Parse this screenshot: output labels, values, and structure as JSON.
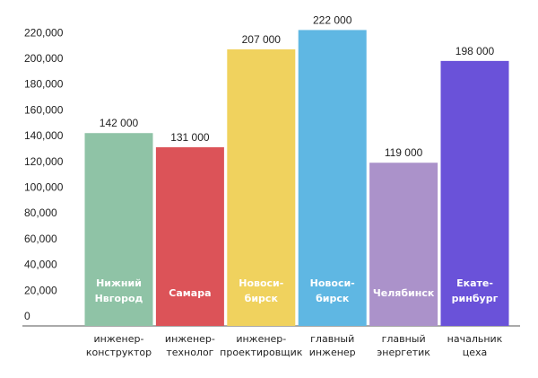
{
  "chart_data": {
    "type": "bar",
    "ylim": [
      0,
      220000
    ],
    "y_ticks": [
      "0",
      "20,000",
      "40,000",
      "60,000",
      "80,000",
      "100,000",
      "120,000",
      "140,000",
      "160,000",
      "180,000",
      "200,000",
      "220,000"
    ],
    "grid": false,
    "categories": [
      [
        "инженер-",
        "конструктор"
      ],
      [
        "инженер-",
        "технолог"
      ],
      [
        "инженер-",
        "проектировщик"
      ],
      [
        "главный",
        "инженер"
      ],
      [
        "главный",
        "энергетик"
      ],
      [
        "начальник",
        "цеха"
      ]
    ],
    "bar_labels": [
      [
        "Нижний",
        "Нвгород"
      ],
      [
        "Самара"
      ],
      [
        "Новоси-",
        "бирск"
      ],
      [
        "Новоси-",
        "бирск"
      ],
      [
        "Челябинск"
      ],
      [
        "Екате-",
        "ринбург"
      ]
    ],
    "values": [
      142000,
      131000,
      207000,
      222000,
      119000,
      198000
    ],
    "value_labels": [
      "142 000",
      "131 000",
      "207 000",
      "222 000",
      "119 000",
      "198 000"
    ],
    "colors": [
      "#8fc3a6",
      "#dc5358",
      "#f0d25e",
      "#5fb7e3",
      "#ab92ca",
      "#6a52d9"
    ]
  }
}
